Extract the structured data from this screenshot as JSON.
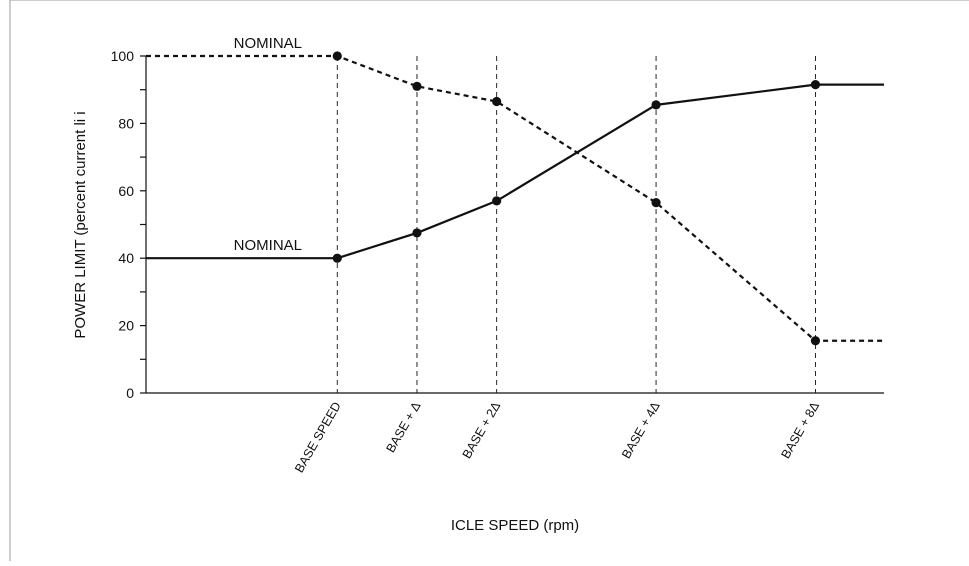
{
  "chart_data": {
    "type": "line",
    "title": "",
    "xlabel": "ICLE SPEED  (rpm)",
    "ylabel": "POWER LIMIT  (percent current li    i",
    "ylim": [
      0,
      100
    ],
    "yticks": [
      0,
      20,
      40,
      60,
      80,
      100
    ],
    "grid": "dashed vertical lines at speed markers",
    "categories": [
      "BASE SPEED",
      "BASE + Δ",
      "BASE + 2Δ",
      "BASE + 4Δ",
      "BASE + 8Δ"
    ],
    "category_positions": [
      1,
      1.5,
      2,
      3,
      4
    ],
    "xlim": [
      -0.2,
      4.43
    ],
    "series": [
      {
        "style": "dashed",
        "color": "#111111",
        "x": [
          -0.2,
          1,
          1.5,
          2,
          3,
          4,
          4.43
        ],
        "values": [
          100,
          100,
          91,
          86.5,
          56.5,
          15.5,
          15.5
        ],
        "markers": [
          false,
          true,
          true,
          true,
          true,
          true,
          false
        ]
      },
      {
        "style": "solid",
        "color": "#111111",
        "x": [
          -0.2,
          1,
          1.5,
          2,
          3,
          4,
          4.43
        ],
        "values": [
          40,
          40,
          47.5,
          57,
          85.5,
          91.5,
          91.5
        ],
        "markers": [
          false,
          true,
          true,
          true,
          true,
          true,
          false
        ]
      }
    ],
    "annotations": [
      {
        "text": "NOMINAL",
        "x": 0.35,
        "y": 100
      },
      {
        "text": "NOMINAL",
        "x": 0.35,
        "y": 40
      }
    ]
  }
}
